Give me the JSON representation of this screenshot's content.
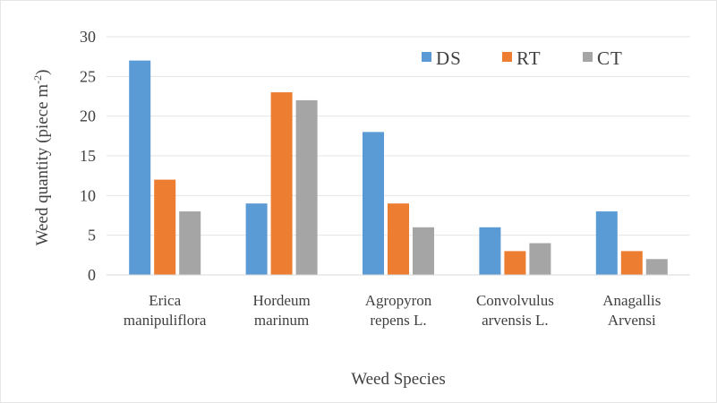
{
  "chart_data": {
    "type": "bar",
    "title": "",
    "xlabel": "Weed Species",
    "ylabel": "Weed quantity (piece m",
    "ylabel_sup": "-2",
    "ylabel_close": ")",
    "ylim": [
      0,
      30
    ],
    "y_ticks": [
      0,
      5,
      10,
      15,
      20,
      25,
      30
    ],
    "grid": true,
    "legend_position": "top-right",
    "categories": [
      [
        "Erica",
        "manipuliflora"
      ],
      [
        "Hordeum",
        "marinum"
      ],
      [
        "Agropyron",
        "repens L."
      ],
      [
        "Convolvulus",
        "arvensis L."
      ],
      [
        "Anagallis",
        "Arvensi"
      ]
    ],
    "series": [
      {
        "name": "DS",
        "color": "#5B9BD5",
        "values": [
          27,
          9,
          18,
          6,
          8
        ]
      },
      {
        "name": "RT",
        "color": "#ED7D31",
        "values": [
          12,
          23,
          9,
          3,
          3
        ]
      },
      {
        "name": "CT",
        "color": "#A5A5A5",
        "values": [
          8,
          22,
          6,
          4,
          2
        ]
      }
    ]
  }
}
